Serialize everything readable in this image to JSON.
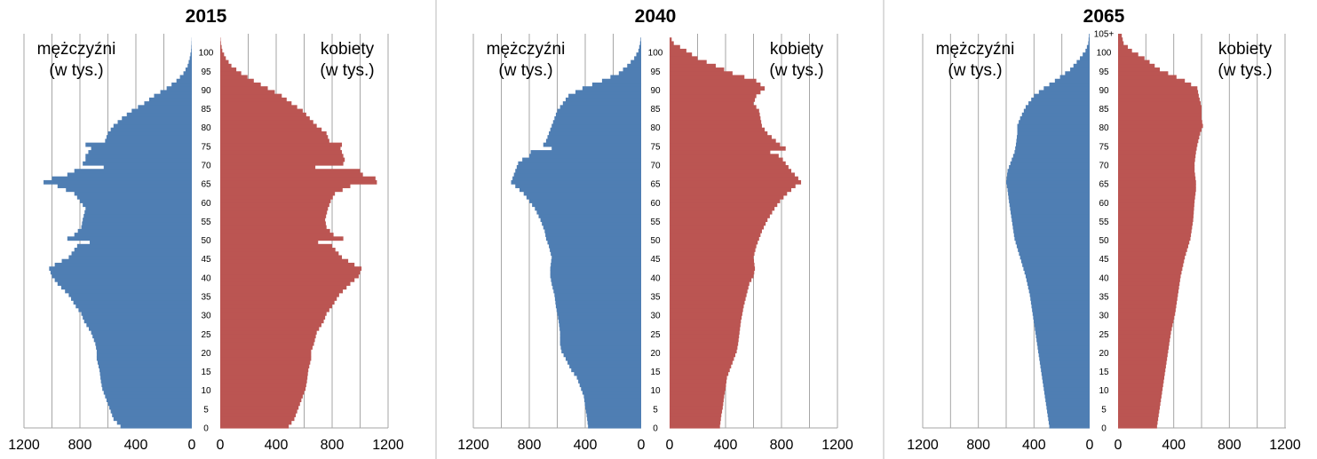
{
  "chart_data": [
    {
      "type": "bar",
      "orientation": "population-pyramid",
      "title": "2015",
      "left_label": [
        "mężczyźni",
        "(w tys.)"
      ],
      "right_label": [
        "kobiety",
        "(w tys.)"
      ],
      "x_ticks_left": [
        "1200",
        "800",
        "400",
        "0"
      ],
      "x_ticks_right": [
        "0",
        "400",
        "800",
        "1200"
      ],
      "xlim": [
        0,
        1200
      ],
      "age_ticks": [
        "0",
        "5",
        "10",
        "15",
        "20",
        "25",
        "30",
        "35",
        "40",
        "45",
        "50",
        "55",
        "60",
        "65",
        "70",
        "75",
        "80",
        "85",
        "90",
        "95",
        "100"
      ],
      "age_range": [
        0,
        105
      ],
      "grid": true,
      "colors": {
        "male": "#4f7eb3",
        "female": "#bb5552"
      },
      "series": [
        {
          "name": "mężczyźni",
          "age": [
            0,
            2,
            5,
            8,
            10,
            12,
            15,
            18,
            20,
            22,
            25,
            28,
            30,
            32,
            35,
            38,
            40,
            42,
            43,
            45,
            48,
            49,
            50,
            51,
            53,
            55,
            58,
            60,
            62,
            64,
            65,
            66,
            67,
            68,
            69,
            70,
            71,
            72,
            74,
            75,
            76,
            78,
            80,
            82,
            84,
            86,
            88,
            90,
            92,
            94,
            96,
            98,
            100,
            102,
            104
          ],
          "values": [
            510,
            560,
            590,
            620,
            640,
            650,
            660,
            680,
            680,
            690,
            720,
            770,
            790,
            830,
            880,
            960,
            1000,
            1020,
            980,
            880,
            820,
            730,
            890,
            840,
            790,
            780,
            760,
            800,
            840,
            960,
            1060,
            1000,
            890,
            840,
            630,
            780,
            760,
            760,
            720,
            760,
            620,
            600,
            560,
            500,
            430,
            340,
            270,
            180,
            110,
            60,
            30,
            15,
            5,
            2,
            0
          ]
        },
        {
          "name": "kobiety",
          "age": [
            0,
            2,
            5,
            8,
            10,
            12,
            15,
            18,
            20,
            22,
            25,
            28,
            30,
            32,
            35,
            38,
            40,
            42,
            43,
            45,
            48,
            49,
            50,
            51,
            53,
            55,
            58,
            60,
            62,
            64,
            65,
            66,
            67,
            68,
            69,
            70,
            71,
            72,
            74,
            75,
            76,
            78,
            80,
            82,
            84,
            86,
            88,
            90,
            92,
            94,
            96,
            98,
            100,
            102,
            104
          ],
          "values": [
            490,
            530,
            560,
            590,
            610,
            620,
            630,
            650,
            650,
            670,
            690,
            740,
            760,
            800,
            850,
            930,
            990,
            1010,
            960,
            870,
            800,
            700,
            880,
            810,
            760,
            750,
            770,
            790,
            820,
            930,
            1120,
            1110,
            1020,
            1000,
            680,
            880,
            890,
            880,
            860,
            870,
            780,
            760,
            690,
            640,
            590,
            510,
            440,
            340,
            240,
            150,
            80,
            40,
            15,
            5,
            0
          ]
        }
      ]
    },
    {
      "type": "bar",
      "orientation": "population-pyramid",
      "title": "2040",
      "left_label": [
        "mężczyźni",
        "(w tys.)"
      ],
      "right_label": [
        "kobiety",
        "(w tys.)"
      ],
      "x_ticks_left": [
        "1200",
        "800",
        "400",
        "0"
      ],
      "x_ticks_right": [
        "0",
        "400",
        "800",
        "1200"
      ],
      "xlim": [
        0,
        1200
      ],
      "age_ticks": [
        "0",
        "5",
        "10",
        "15",
        "20",
        "25",
        "30",
        "35",
        "40",
        "45",
        "50",
        "55",
        "60",
        "65",
        "70",
        "75",
        "80",
        "85",
        "90",
        "95",
        "100"
      ],
      "age_range": [
        0,
        105
      ],
      "grid": true,
      "colors": {
        "male": "#4f7eb3",
        "female": "#bb5552"
      },
      "series": [
        {
          "name": "mężczyźni",
          "age": [
            0,
            3,
            5,
            8,
            10,
            13,
            15,
            18,
            20,
            22,
            25,
            28,
            30,
            32,
            35,
            38,
            40,
            42,
            45,
            48,
            50,
            52,
            55,
            58,
            60,
            62,
            64,
            65,
            66,
            68,
            70,
            71,
            72,
            73,
            74,
            75,
            76,
            78,
            80,
            82,
            84,
            86,
            88,
            90,
            92,
            94,
            96,
            98,
            100,
            102,
            104
          ],
          "values": [
            380,
            390,
            400,
            410,
            430,
            460,
            500,
            540,
            570,
            580,
            580,
            590,
            600,
            610,
            620,
            640,
            650,
            650,
            640,
            660,
            680,
            690,
            720,
            760,
            800,
            840,
            900,
            930,
            920,
            900,
            880,
            850,
            800,
            790,
            640,
            700,
            680,
            660,
            640,
            620,
            600,
            560,
            520,
            420,
            280,
            160,
            100,
            50,
            20,
            8,
            0
          ]
        },
        {
          "name": "kobiety",
          "age": [
            0,
            3,
            5,
            8,
            10,
            13,
            15,
            18,
            20,
            22,
            25,
            28,
            30,
            32,
            35,
            38,
            40,
            42,
            45,
            48,
            50,
            52,
            55,
            58,
            60,
            62,
            64,
            65,
            66,
            68,
            70,
            71,
            72,
            73,
            74,
            75,
            76,
            78,
            80,
            82,
            84,
            86,
            88,
            90,
            92,
            94,
            96,
            98,
            100,
            102,
            104
          ],
          "values": [
            360,
            370,
            380,
            390,
            400,
            410,
            430,
            460,
            480,
            490,
            500,
            510,
            520,
            530,
            550,
            570,
            600,
            610,
            600,
            620,
            640,
            660,
            700,
            750,
            790,
            840,
            900,
            940,
            920,
            870,
            830,
            810,
            780,
            720,
            830,
            790,
            760,
            700,
            660,
            650,
            640,
            600,
            620,
            680,
            620,
            450,
            330,
            200,
            120,
            30,
            0
          ]
        }
      ]
    },
    {
      "type": "bar",
      "orientation": "population-pyramid",
      "title": "2065",
      "left_label": [
        "mężczyźni",
        "(w tys.)"
      ],
      "right_label": [
        "kobiety",
        "(w tys.)"
      ],
      "x_ticks_left": [
        "1200",
        "800",
        "400",
        "0"
      ],
      "x_ticks_right": [
        "0",
        "400",
        "800",
        "1200"
      ],
      "xlim": [
        0,
        1200
      ],
      "age_ticks": [
        "0",
        "5",
        "10",
        "15",
        "20",
        "25",
        "30",
        "35",
        "40",
        "45",
        "50",
        "55",
        "60",
        "65",
        "70",
        "75",
        "80",
        "85",
        "90",
        "95",
        "100",
        "105+"
      ],
      "age_range": [
        0,
        105
      ],
      "grid": true,
      "colors": {
        "male": "#4f7eb3",
        "female": "#bb5552"
      },
      "series": [
        {
          "name": "mężczyźni",
          "age": [
            0,
            5,
            10,
            15,
            20,
            25,
            30,
            35,
            40,
            45,
            50,
            55,
            60,
            63,
            65,
            68,
            70,
            73,
            75,
            78,
            80,
            82,
            85,
            88,
            90,
            92,
            95,
            98,
            100,
            102,
            105
          ],
          "values": [
            290,
            310,
            330,
            350,
            370,
            390,
            410,
            430,
            460,
            500,
            540,
            560,
            580,
            590,
            600,
            590,
            570,
            540,
            530,
            520,
            520,
            500,
            460,
            400,
            330,
            250,
            140,
            70,
            30,
            10,
            2
          ]
        },
        {
          "name": "kobiety",
          "age": [
            0,
            5,
            10,
            15,
            20,
            25,
            30,
            35,
            40,
            45,
            50,
            55,
            60,
            63,
            65,
            68,
            70,
            73,
            75,
            78,
            80,
            82,
            85,
            88,
            90,
            92,
            95,
            98,
            100,
            102,
            105
          ],
          "values": [
            280,
            300,
            320,
            340,
            360,
            380,
            410,
            430,
            450,
            480,
            520,
            540,
            550,
            560,
            560,
            550,
            550,
            560,
            570,
            590,
            610,
            600,
            600,
            580,
            570,
            480,
            300,
            190,
            100,
            40,
            20
          ]
        }
      ]
    }
  ]
}
